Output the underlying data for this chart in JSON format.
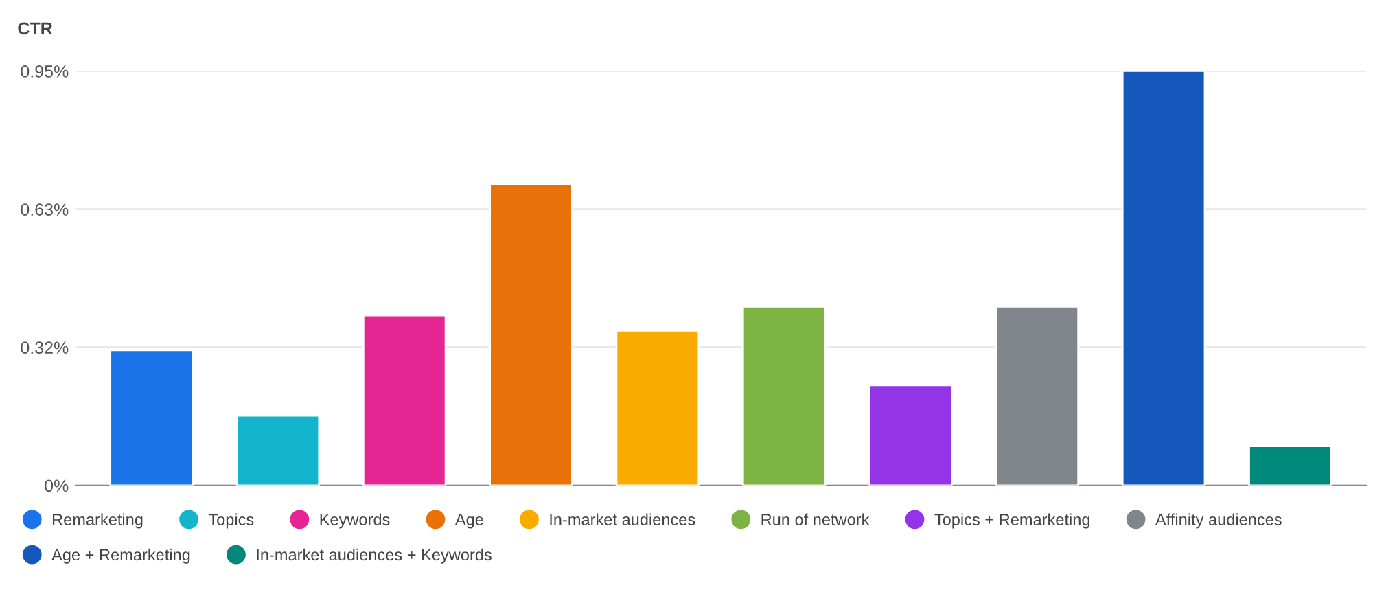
{
  "chart_data": {
    "type": "bar",
    "ylabel": "CTR",
    "categories": [
      null,
      null,
      null,
      null,
      null,
      null,
      null,
      null,
      null,
      null
    ],
    "series": [
      {
        "name": "Remarketing",
        "color": "#1a73e8",
        "values": [
          0.31,
          null,
          null,
          null,
          null,
          null,
          null,
          null,
          null,
          null
        ]
      },
      {
        "name": "Topics",
        "color": "#12b5cb",
        "values": [
          null,
          0.16,
          null,
          null,
          null,
          null,
          null,
          null,
          null,
          null
        ]
      },
      {
        "name": "Keywords",
        "color": "#e52592",
        "values": [
          null,
          null,
          0.39,
          null,
          null,
          null,
          null,
          null,
          null,
          null
        ]
      },
      {
        "name": "Age",
        "color": "#e8710a",
        "values": [
          null,
          null,
          null,
          0.69,
          null,
          null,
          null,
          null,
          null,
          null
        ]
      },
      {
        "name": "In-market audiences",
        "color": "#f9ab00",
        "values": [
          null,
          null,
          null,
          null,
          0.355,
          null,
          null,
          null,
          null,
          null
        ]
      },
      {
        "name": "Run of network",
        "color": "#7cb342",
        "values": [
          null,
          null,
          null,
          null,
          null,
          0.41,
          null,
          null,
          null,
          null
        ]
      },
      {
        "name": "Topics + Remarketing",
        "color": "#9334e6",
        "values": [
          null,
          null,
          null,
          null,
          null,
          null,
          0.23,
          null,
          null,
          null
        ]
      },
      {
        "name": "Affinity audiences",
        "color": "#80868b",
        "values": [
          null,
          null,
          null,
          null,
          null,
          null,
          null,
          0.41,
          null,
          null
        ]
      },
      {
        "name": "Age + Remarketing",
        "color": "#1558bc",
        "values": [
          null,
          null,
          null,
          null,
          null,
          null,
          null,
          null,
          0.95,
          null
        ]
      },
      {
        "name": "In-market audiences + Keywords",
        "color": "#00897b",
        "values": [
          null,
          null,
          null,
          null,
          null,
          null,
          null,
          null,
          null,
          0.09
        ]
      }
    ],
    "ylim": [
      0,
      0.95
    ],
    "yticks": [
      {
        "value": 0,
        "label": "0%"
      },
      {
        "value": 0.3167,
        "label": "0.32%"
      },
      {
        "value": 0.6333,
        "label": "0.63%"
      },
      {
        "value": 0.95,
        "label": "0.95%"
      }
    ],
    "grid": "y",
    "legend": "bottom",
    "tick_labels": "y"
  }
}
